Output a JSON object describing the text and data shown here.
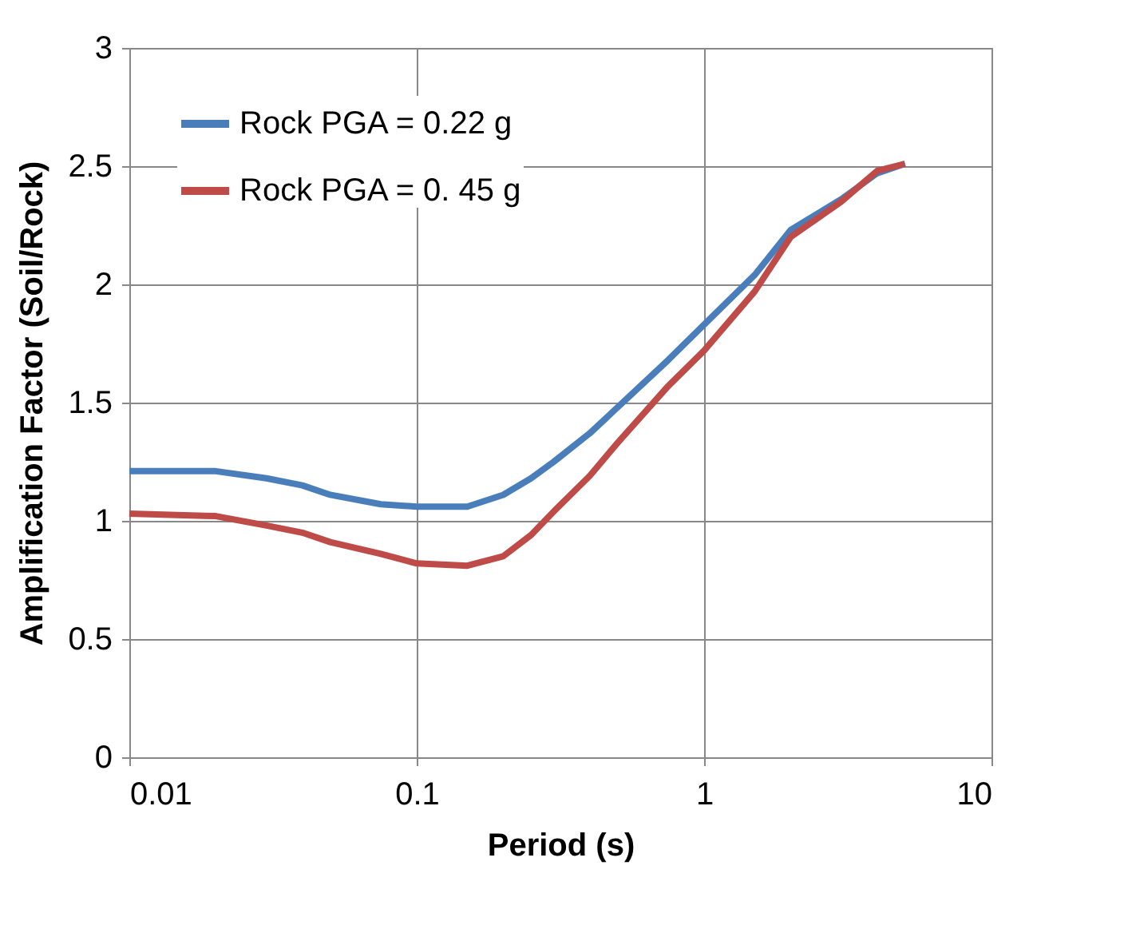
{
  "chart_data": {
    "type": "line",
    "xlabel": "Period (s)",
    "ylabel": "Amplification Factor (Soil/Rock)",
    "x": [
      0.01,
      0.02,
      0.03,
      0.04,
      0.05,
      0.075,
      0.1,
      0.15,
      0.2,
      0.25,
      0.3,
      0.4,
      0.5,
      0.75,
      1,
      1.5,
      2,
      3,
      4,
      5
    ],
    "series": [
      {
        "name": "Rock PGA = 0.22 g",
        "color": "#4a7ebb",
        "values": [
          1.21,
          1.21,
          1.18,
          1.15,
          1.11,
          1.07,
          1.06,
          1.06,
          1.11,
          1.18,
          1.25,
          1.37,
          1.48,
          1.68,
          1.83,
          2.04,
          2.23,
          2.36,
          2.47,
          2.51
        ]
      },
      {
        "name": "Rock PGA = 0. 45 g",
        "color": "#be4b48",
        "values": [
          1.03,
          1.02,
          0.98,
          0.95,
          0.91,
          0.86,
          0.82,
          0.81,
          0.85,
          0.94,
          1.04,
          1.19,
          1.33,
          1.57,
          1.72,
          1.97,
          2.2,
          2.35,
          2.48,
          2.51
        ]
      }
    ],
    "log": "x",
    "xlim": [
      0.01,
      10
    ],
    "xticks": [
      0.01,
      0.1,
      1,
      10
    ],
    "ylim": [
      0,
      3
    ],
    "yticks": [
      0,
      0.5,
      1,
      1.5,
      2,
      2.5,
      3
    ],
    "grid": true,
    "legend": "top left",
    "marker": "none",
    "line_style": "solid"
  }
}
